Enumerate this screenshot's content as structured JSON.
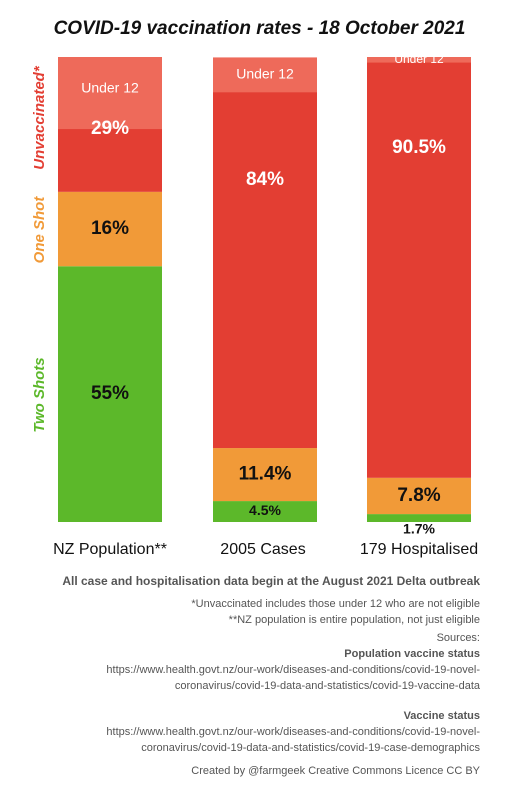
{
  "chart_data": {
    "type": "bar",
    "stacked": true,
    "percent_stacked": true,
    "title": "COVID-19 vaccination rates - 18 October 2021",
    "categories": [
      "NZ Population**",
      "2005 Cases",
      "179 Hospitalised"
    ],
    "series": [
      {
        "name": "Two Shots",
        "color": "#5cb82a",
        "values": [
          55,
          4.5,
          1.7
        ],
        "labels": [
          "55%",
          "4.5%",
          "1.7%"
        ]
      },
      {
        "name": "One Shot",
        "color": "#f19a38",
        "values": [
          16,
          11.4,
          7.8
        ],
        "labels": [
          "16%",
          "11.4%",
          "7.8%"
        ]
      },
      {
        "name": "Unvaccinated*",
        "color": "#e33e33",
        "values": [
          29,
          84,
          90.5
        ],
        "labels": [
          "29%",
          "84%",
          "90.5%"
        ]
      }
    ],
    "under12_label": "Under 12",
    "under12_share_of_total": [
      15.5,
      7.5,
      1.2
    ],
    "under12_color": "#ee6a5a",
    "ylim": [
      0,
      100
    ]
  },
  "notes": {
    "outbreak": "All case and hospitalisation data begin at the August 2021 Delta outbreak",
    "unvaccinated": "*Unvaccinated includes those under 12 who are not eligible",
    "population": "**NZ population is entire population, not just eligible",
    "sources": "Sources:",
    "population_status_heading": "Population vaccine status",
    "population_url_1": "https://www.health.govt.nz/our-work/diseases-and-conditions/covid-19-novel-",
    "population_url_2": "coronavirus/covid-19-data-and-statistics/covid-19-vaccine-data",
    "vaccine_status_heading": "Vaccine status",
    "vaccine_url_1": "https://www.health.govt.nz/our-work/diseases-and-conditions/covid-19-novel-",
    "vaccine_url_2": "coronavirus/covid-19-data-and-statistics/covid-19-case-demographics",
    "credit": "Created by @farmgeek Creative Commons Licence CC BY"
  }
}
